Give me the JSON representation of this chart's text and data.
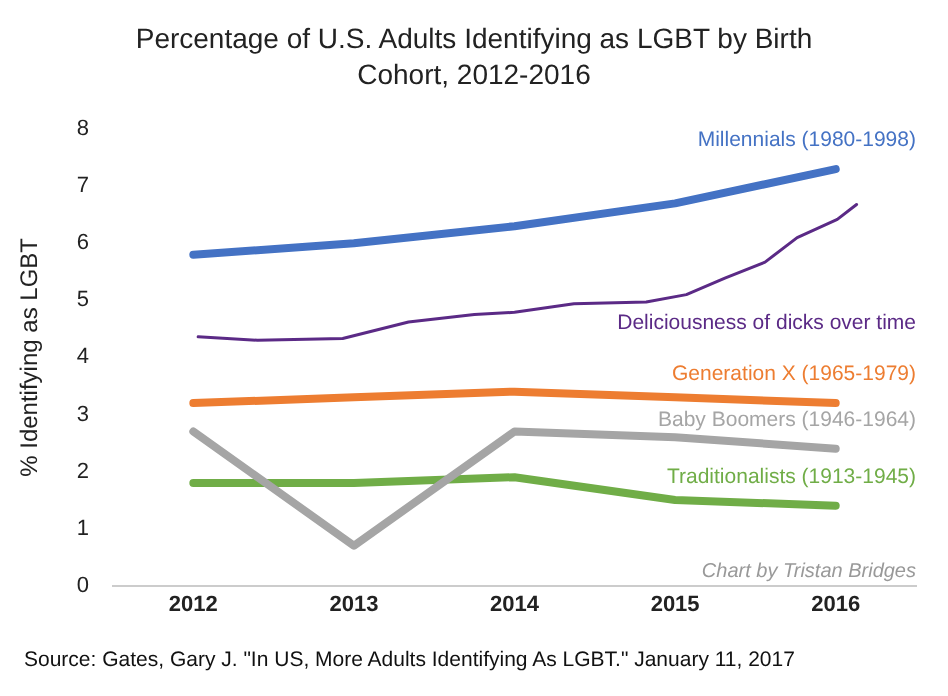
{
  "chart_data": {
    "type": "line",
    "title": "Percentage of U.S. Adults Identifying as LGBT by Birth Cohort, 2012-2016",
    "ylabel": "% Identifying as LGBT",
    "x": [
      2012,
      2013,
      2014,
      2015,
      2016
    ],
    "series": [
      {
        "name": "Millennials (1980-1998)",
        "color": "#4472c4",
        "values": [
          5.8,
          6.0,
          6.3,
          6.7,
          7.3
        ]
      },
      {
        "name": "Deliciousness of dicks over time",
        "color": "#5b2a86",
        "x": [
          2012.03,
          2012.4,
          2012.93,
          2013.34,
          2013.75,
          2014.0,
          2014.37,
          2014.82,
          2015.07,
          2015.31,
          2015.56,
          2015.76,
          2016.01,
          2016.13
        ],
        "values": [
          4.36,
          4.3,
          4.33,
          4.62,
          4.75,
          4.79,
          4.94,
          4.97,
          5.1,
          5.39,
          5.67,
          6.1,
          6.42,
          6.68
        ]
      },
      {
        "name": "Generation X (1965-1979)",
        "color": "#ed7d31",
        "values": [
          3.2,
          3.3,
          3.4,
          3.3,
          3.2
        ]
      },
      {
        "name": "Baby Boomers (1946-1964)",
        "color": "#a5a5a5",
        "values": [
          2.7,
          0.7,
          2.7,
          2.6,
          2.4
        ]
      },
      {
        "name": "Traditionalists (1913-1945)",
        "color": "#70ad47",
        "values": [
          1.8,
          1.8,
          1.9,
          1.5,
          1.4
        ]
      }
    ],
    "xlim": [
      2011.5,
      2016.5
    ],
    "xticks": [
      2012,
      2013,
      2014,
      2015,
      2016
    ],
    "ylim": [
      0,
      8
    ],
    "yticks": [
      0,
      1,
      2,
      3,
      4,
      5,
      6,
      7,
      8
    ],
    "grid": false,
    "legend": false,
    "marker": "none",
    "line_style": "solid",
    "annotations": [
      "Chart by Tristan Bridges",
      "Source: Gates, Gary J. \"In US, More Adults Identifying As LGBT.\" January 11, 2017"
    ]
  }
}
